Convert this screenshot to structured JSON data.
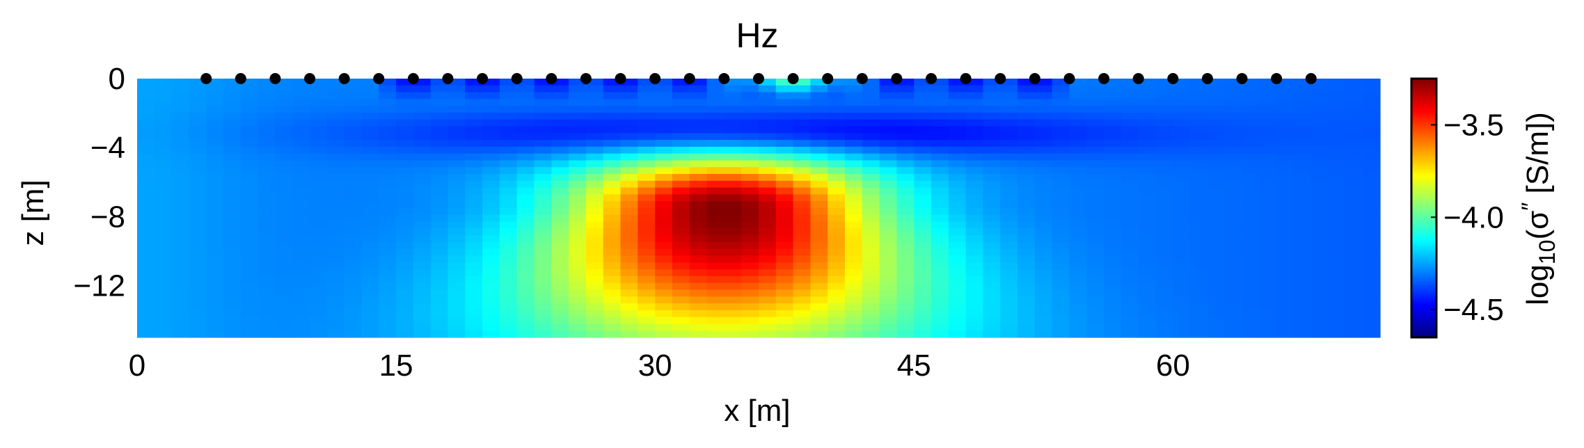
{
  "chart_data": {
    "type": "heatmap",
    "title": "Hz",
    "xlabel": "x [m]",
    "ylabel": "z [m]",
    "colorbar_label": "log10(σ″ [S/m])",
    "colorbar_label_parts": {
      "prefix": "log",
      "sub": "10",
      "mid": "(σ",
      "sup": "″",
      "suffix": " [S/m])"
    },
    "colormap": "jet",
    "xlim": [
      0,
      72
    ],
    "ylim": [
      -15,
      0
    ],
    "clim": [
      -4.65,
      -3.25
    ],
    "x_ticks": [
      0,
      15,
      30,
      45,
      60
    ],
    "x_tick_labels": [
      "0",
      "15",
      "30",
      "45",
      "60"
    ],
    "y_ticks": [
      0,
      -4,
      -8,
      -12
    ],
    "y_tick_labels": [
      "0",
      "−4",
      "−8",
      "−12"
    ],
    "colorbar_ticks": [
      -3.5,
      -4.0,
      -4.5
    ],
    "colorbar_tick_labels": [
      "−3.5",
      "−4.0",
      "−4.5"
    ],
    "grid": false,
    "anomaly": {
      "x_center": 34,
      "z_center": -7.5,
      "peak_log10_sigma": -3.25
    },
    "background_log10_sigma": -4.3,
    "electrodes": {
      "z": 0,
      "x": [
        4,
        6,
        8,
        10,
        12,
        14,
        16,
        18,
        20,
        22,
        24,
        26,
        28,
        30,
        32,
        34,
        36,
        38,
        40,
        42,
        44,
        46,
        48,
        50,
        52,
        54,
        56,
        58,
        60,
        62,
        64,
        66,
        68
      ],
      "marker_color": "#000000"
    }
  }
}
